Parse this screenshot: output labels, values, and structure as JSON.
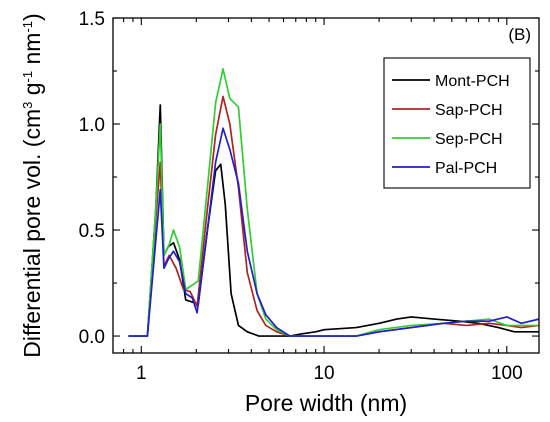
{
  "chart_data": {
    "type": "line",
    "panel_label": "(B)",
    "xlabel": "Pore width (nm)",
    "ylabel_parts": {
      "prefix": "Differential pore vol. (cm",
      "sup1": "3",
      "mid": " g",
      "sup2": "-1",
      "mid2": " nm",
      "sup3": "-1",
      "suffix": ")"
    },
    "xscale": "log",
    "xlim": [
      0.7,
      150
    ],
    "ylim": [
      -0.08,
      1.5
    ],
    "x_ticks": [
      {
        "value": 1,
        "label": "1"
      },
      {
        "value": 10,
        "label": "10"
      },
      {
        "value": 100,
        "label": "100"
      }
    ],
    "y_ticks": [
      {
        "value": 0,
        "label": "0.0"
      },
      {
        "value": 0.5,
        "label": "0.5"
      },
      {
        "value": 1.0,
        "label": "1.0"
      },
      {
        "value": 1.5,
        "label": "1.5"
      }
    ],
    "legend_position": "top-right",
    "series": [
      {
        "name": "Mont-PCH",
        "color": "#000000",
        "points": [
          [
            0.85,
            0
          ],
          [
            1.08,
            0
          ],
          [
            1.2,
            0.6
          ],
          [
            1.27,
            1.09
          ],
          [
            1.33,
            0.38
          ],
          [
            1.4,
            0.42
          ],
          [
            1.5,
            0.44
          ],
          [
            1.62,
            0.36
          ],
          [
            1.75,
            0.17
          ],
          [
            1.9,
            0.16
          ],
          [
            2.05,
            0.15
          ],
          [
            2.3,
            0.5
          ],
          [
            2.55,
            0.78
          ],
          [
            2.72,
            0.81
          ],
          [
            2.88,
            0.62
          ],
          [
            3.1,
            0.2
          ],
          [
            3.4,
            0.05
          ],
          [
            3.8,
            0.02
          ],
          [
            4.4,
            0
          ],
          [
            6.5,
            0
          ],
          [
            7.5,
            0.01
          ],
          [
            9,
            0.02
          ],
          [
            10,
            0.03
          ],
          [
            15,
            0.04
          ],
          [
            20,
            0.06
          ],
          [
            25,
            0.08
          ],
          [
            30,
            0.09
          ],
          [
            40,
            0.08
          ],
          [
            55,
            0.07
          ],
          [
            70,
            0.06
          ],
          [
            90,
            0.04
          ],
          [
            110,
            0.02
          ],
          [
            150,
            0.02
          ]
        ]
      },
      {
        "name": "Sap-PCH",
        "color": "#b22222",
        "points": [
          [
            0.85,
            0
          ],
          [
            1.08,
            0
          ],
          [
            1.2,
            0.55
          ],
          [
            1.27,
            0.82
          ],
          [
            1.33,
            0.33
          ],
          [
            1.42,
            0.38
          ],
          [
            1.55,
            0.32
          ],
          [
            1.7,
            0.22
          ],
          [
            1.85,
            0.21
          ],
          [
            2.02,
            0.14
          ],
          [
            2.3,
            0.6
          ],
          [
            2.55,
            0.95
          ],
          [
            2.8,
            1.13
          ],
          [
            3.05,
            1.0
          ],
          [
            3.4,
            0.7
          ],
          [
            3.8,
            0.3
          ],
          [
            4.3,
            0.12
          ],
          [
            4.8,
            0.05
          ],
          [
            5.5,
            0.02
          ],
          [
            6.5,
            0
          ],
          [
            15,
            0
          ],
          [
            20,
            0.02
          ],
          [
            30,
            0.04
          ],
          [
            45,
            0.06
          ],
          [
            60,
            0.05
          ],
          [
            80,
            0.06
          ],
          [
            100,
            0.05
          ],
          [
            120,
            0.04
          ],
          [
            150,
            0.05
          ]
        ]
      },
      {
        "name": "Sep-PCH",
        "color": "#33cc33",
        "points": [
          [
            0.85,
            0
          ],
          [
            1.08,
            0
          ],
          [
            1.2,
            0.6
          ],
          [
            1.27,
            1.0
          ],
          [
            1.33,
            0.38
          ],
          [
            1.42,
            0.43
          ],
          [
            1.5,
            0.5
          ],
          [
            1.62,
            0.42
          ],
          [
            1.75,
            0.22
          ],
          [
            1.9,
            0.24
          ],
          [
            2.05,
            0.26
          ],
          [
            2.3,
            0.7
          ],
          [
            2.55,
            1.1
          ],
          [
            2.8,
            1.26
          ],
          [
            3.05,
            1.12
          ],
          [
            3.4,
            1.08
          ],
          [
            3.8,
            0.6
          ],
          [
            4.3,
            0.2
          ],
          [
            4.8,
            0.08
          ],
          [
            5.5,
            0.03
          ],
          [
            6.5,
            0
          ],
          [
            15,
            0
          ],
          [
            20,
            0.03
          ],
          [
            30,
            0.05
          ],
          [
            45,
            0.06
          ],
          [
            60,
            0.07
          ],
          [
            80,
            0.08
          ],
          [
            100,
            0.05
          ],
          [
            120,
            0.05
          ],
          [
            150,
            0.05
          ]
        ]
      },
      {
        "name": "Pal-PCH",
        "color": "#1f1fcc",
        "points": [
          [
            0.85,
            0
          ],
          [
            1.08,
            0
          ],
          [
            1.2,
            0.45
          ],
          [
            1.27,
            0.69
          ],
          [
            1.33,
            0.32
          ],
          [
            1.42,
            0.37
          ],
          [
            1.5,
            0.4
          ],
          [
            1.62,
            0.35
          ],
          [
            1.75,
            0.2
          ],
          [
            1.9,
            0.18
          ],
          [
            2.02,
            0.11
          ],
          [
            2.3,
            0.5
          ],
          [
            2.55,
            0.82
          ],
          [
            2.8,
            0.98
          ],
          [
            3.05,
            0.88
          ],
          [
            3.4,
            0.72
          ],
          [
            3.8,
            0.4
          ],
          [
            4.3,
            0.2
          ],
          [
            4.8,
            0.1
          ],
          [
            5.5,
            0.04
          ],
          [
            6.5,
            0
          ],
          [
            15,
            0
          ],
          [
            20,
            0.02
          ],
          [
            30,
            0.04
          ],
          [
            45,
            0.06
          ],
          [
            60,
            0.07
          ],
          [
            80,
            0.07
          ],
          [
            100,
            0.09
          ],
          [
            120,
            0.06
          ],
          [
            150,
            0.08
          ]
        ]
      }
    ]
  }
}
